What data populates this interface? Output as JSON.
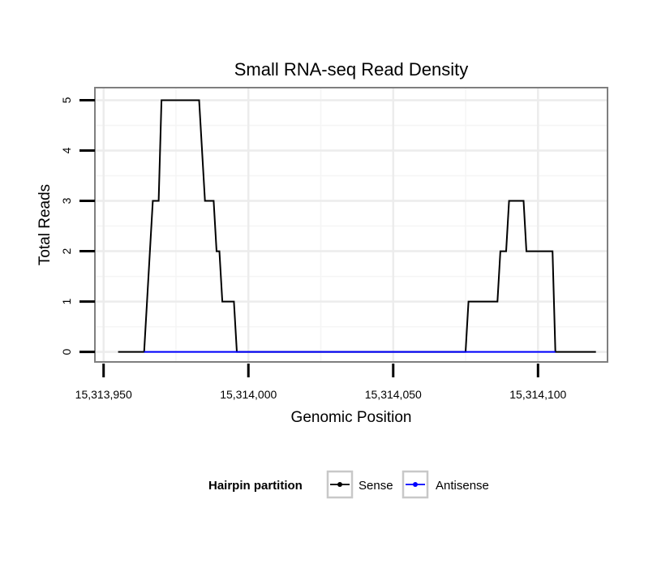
{
  "chart_data": {
    "type": "line",
    "title": "Small RNA-seq Read Density",
    "xlabel": "Genomic Position",
    "ylabel": "Total Reads",
    "xlim": [
      15313947,
      15314124
    ],
    "ylim": [
      -0.2,
      5.25
    ],
    "grid": true,
    "x_ticks": [
      15313950,
      15314000,
      15314050,
      15314100
    ],
    "x_tick_labels": [
      "15,313,950",
      "15,314,000",
      "15,314,050",
      "15,314,100"
    ],
    "y_ticks": [
      0,
      1,
      2,
      3,
      4,
      5
    ],
    "y_tick_labels": [
      "0",
      "1",
      "2",
      "3",
      "4",
      "5"
    ],
    "legend": {
      "title": "Hairpin partition",
      "position": "bottom",
      "entries": [
        {
          "label": "Sense",
          "color": "#000000"
        },
        {
          "label": "Antisense",
          "color": "#0000ff"
        }
      ]
    },
    "series": [
      {
        "name": "Sense",
        "color": "#000000",
        "x": [
          15313955,
          15313964,
          15313967,
          15313969,
          15313970,
          15313983,
          15313985,
          15313988,
          15313989,
          15313990,
          15313991,
          15313995,
          15313996,
          15314075,
          15314076,
          15314086,
          15314087,
          15314089,
          15314090,
          15314095,
          15314096,
          15314105,
          15314106,
          15314120
        ],
        "y": [
          0,
          0,
          3,
          3,
          5,
          5,
          3,
          3,
          2,
          2,
          1,
          1,
          0,
          0,
          1,
          1,
          2,
          2,
          3,
          3,
          2,
          2,
          0,
          0
        ]
      },
      {
        "name": "Antisense",
        "color": "#0000ff",
        "x": [
          15313964,
          15313996,
          15314075,
          15314106
        ],
        "y": [
          0,
          0,
          0,
          0
        ]
      }
    ]
  }
}
